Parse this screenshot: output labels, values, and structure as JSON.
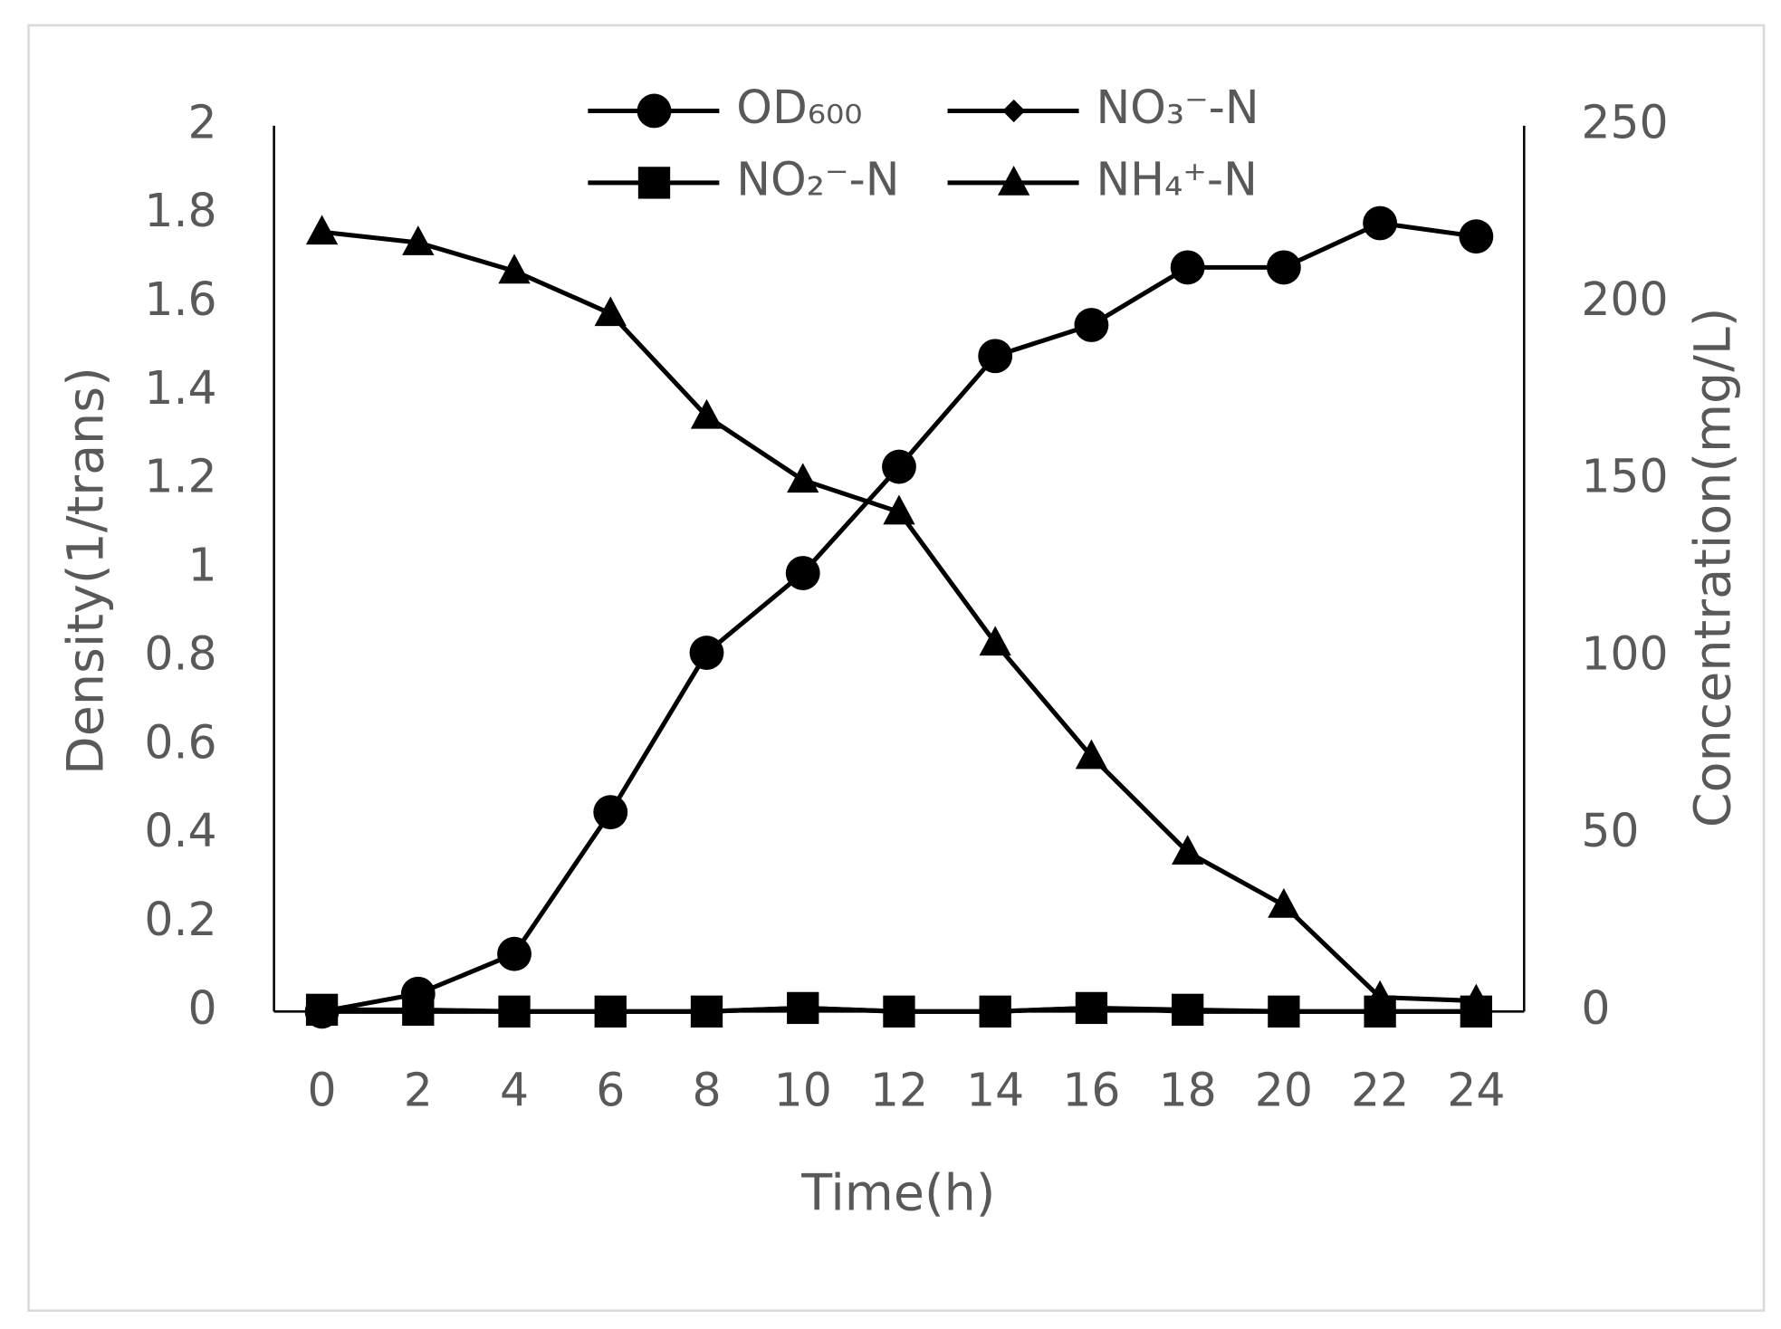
{
  "chart_data": {
    "type": "line",
    "x_label": "Time(h)",
    "y_label": "Density(1/trans)",
    "y2_label": "Concentration(mg/L)",
    "categories": [
      "0",
      "2",
      "4",
      "6",
      "8",
      "10",
      "12",
      "14",
      "16",
      "18",
      "20",
      "22",
      "24"
    ],
    "ylim": [
      0,
      2
    ],
    "yticks": [
      0,
      0.2,
      0.4,
      0.6,
      0.8,
      1,
      1.2,
      1.4,
      1.6,
      1.8,
      2
    ],
    "y2lim": [
      0,
      250
    ],
    "y2ticks": [
      0,
      50,
      100,
      150,
      200,
      250
    ],
    "legend": "top",
    "series": [
      {
        "name": "OD₆₀₀",
        "color": "#000000",
        "marker": "circle",
        "axis": "y",
        "values": [
          0,
          0.04,
          0.13,
          0.45,
          0.81,
          0.99,
          1.23,
          1.48,
          1.55,
          1.68,
          1.68,
          1.78,
          1.75
        ]
      },
      {
        "name": "NO₃⁻-N",
        "color": "#000000",
        "marker": "diamond",
        "axis": "y2",
        "values": [
          0,
          0,
          0,
          0,
          0,
          1,
          0,
          0,
          1,
          0,
          0,
          0,
          0
        ]
      },
      {
        "name": "NO₂⁻-N",
        "color": "#000000",
        "marker": "square",
        "axis": "y2",
        "values": [
          0.5,
          0.5,
          0,
          0,
          0,
          1,
          0,
          0,
          1,
          0.5,
          0,
          0,
          0
        ]
      },
      {
        "name": "NH₄⁺-N",
        "color": "#000000",
        "marker": "triangle",
        "axis": "y2",
        "values": [
          220,
          217,
          209,
          197,
          168,
          150,
          141,
          104,
          72,
          45,
          30,
          4,
          3
        ]
      }
    ]
  }
}
